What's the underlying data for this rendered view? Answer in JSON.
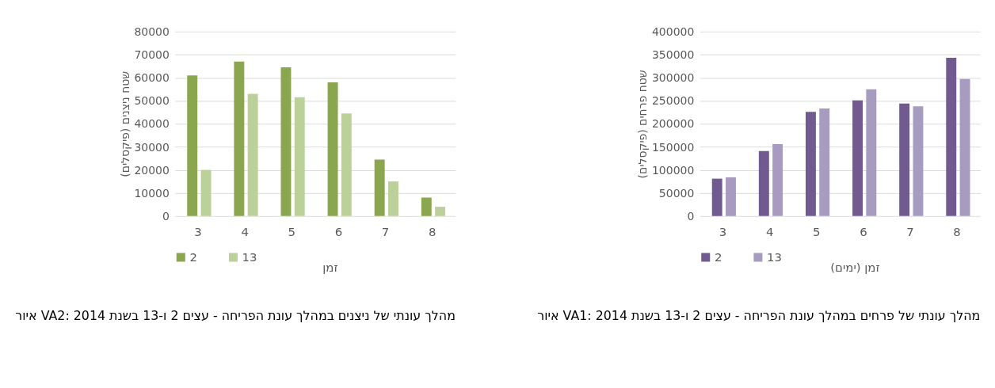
{
  "chart_data": [
    {
      "type": "bar",
      "categories": [
        "3",
        "4",
        "5",
        "6",
        "7",
        "8"
      ],
      "xlabel": "זמן",
      "ylabel": "שטח ניצנים (פיקסלים)",
      "ylim": [
        0,
        80000
      ],
      "yticks": [
        0,
        10000,
        20000,
        30000,
        40000,
        50000,
        60000,
        70000,
        80000
      ],
      "grid": "y",
      "legend": "bottom left",
      "series": [
        {
          "name": "2",
          "color": "#8aa64f",
          "values": [
            61000,
            67000,
            64500,
            58000,
            24500,
            8000
          ]
        },
        {
          "name": "13",
          "color": "#bcd19a",
          "values": [
            20000,
            53000,
            51500,
            44500,
            15000,
            4000
          ]
        }
      ],
      "annotations": [
        "איור VA2: מהלך עונתי של ניצנים במהלך עונת הפריחה - עצים 2 ו-13 בשנת 2014"
      ]
    },
    {
      "type": "bar",
      "categories": [
        "3",
        "4",
        "5",
        "6",
        "7",
        "8"
      ],
      "xlabel": "זמן (ימים)",
      "ylabel": "שטח פרחים (פיקסלים)",
      "ylim": [
        0,
        400000
      ],
      "yticks": [
        0,
        50000,
        100000,
        150000,
        200000,
        250000,
        300000,
        350000,
        400000
      ],
      "grid": "y",
      "legend": "bottom left",
      "series": [
        {
          "name": "2",
          "color": "#705a8f",
          "values": [
            81000,
            141000,
            226000,
            251000,
            244000,
            343000
          ]
        },
        {
          "name": "13",
          "color": "#a89bc0",
          "values": [
            84000,
            156000,
            233000,
            275000,
            238000,
            297000
          ]
        }
      ],
      "annotations": [
        "איור VA1: מהלך עונתי של פרחים במהלך עונת הפריחה - עצים 2 ו-13 בשנת 2014"
      ]
    }
  ]
}
